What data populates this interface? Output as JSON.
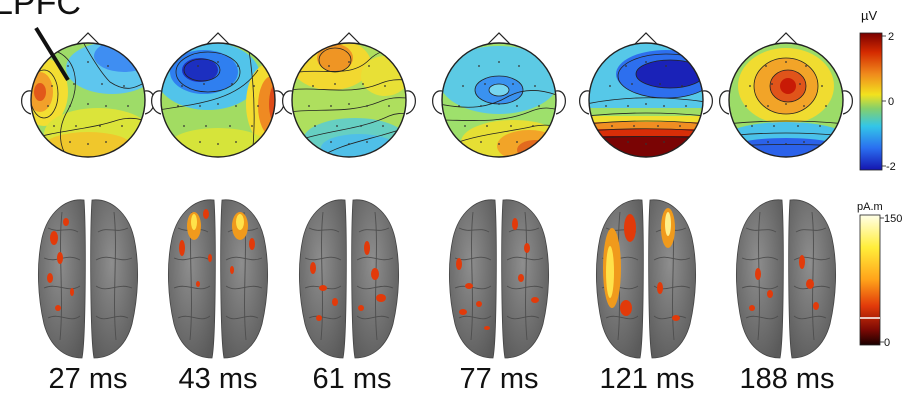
{
  "annotation": {
    "text": "LPFC"
  },
  "topomap_scale": {
    "unit": "µV",
    "tick_labels": [
      "2",
      "0",
      "-2"
    ],
    "colors": [
      "#7a0000",
      "#d42a00",
      "#f08a1c",
      "#f2e21e",
      "#86d06a",
      "#33c6e8",
      "#2a6ff0",
      "#1515b0"
    ]
  },
  "source_scale": {
    "unit": "pA.m",
    "tick_labels": [
      "150",
      "0"
    ],
    "colors": [
      "#ffffe8",
      "#ffee3a",
      "#ffa21a",
      "#e23a0a",
      "#7e0a04",
      "#1a0000"
    ]
  },
  "time_labels": [
    "27 ms",
    "43 ms",
    "61 ms",
    "77 ms",
    "121 ms",
    "188 ms"
  ]
}
